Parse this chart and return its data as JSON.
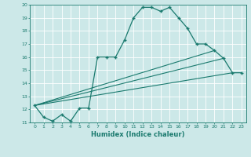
{
  "xlabel": "Humidex (Indice chaleur)",
  "xlim": [
    -0.5,
    23.5
  ],
  "ylim": [
    11,
    20
  ],
  "xticks": [
    0,
    1,
    2,
    3,
    4,
    5,
    6,
    7,
    8,
    9,
    10,
    11,
    12,
    13,
    14,
    15,
    16,
    17,
    18,
    19,
    20,
    21,
    22,
    23
  ],
  "yticks": [
    11,
    12,
    13,
    14,
    15,
    16,
    17,
    18,
    19,
    20
  ],
  "bg_color": "#cce8e8",
  "line_color": "#1a7a6e",
  "grid_color": "#ffffff",
  "series1_x": [
    0,
    1,
    2,
    3,
    4,
    5,
    6,
    7,
    8,
    9,
    10,
    11,
    12,
    13,
    14,
    15,
    16,
    17,
    18,
    19,
    20,
    21,
    22,
    23
  ],
  "series1_y": [
    12.3,
    11.4,
    11.1,
    11.6,
    11.1,
    12.1,
    12.1,
    16.0,
    16.0,
    16.0,
    17.3,
    19.0,
    19.8,
    19.8,
    19.5,
    19.8,
    19.0,
    18.2,
    17.0,
    17.0,
    16.5,
    15.9,
    14.8,
    14.8
  ],
  "series2_x": [
    0,
    22
  ],
  "series2_y": [
    12.3,
    14.8
  ],
  "series3_x": [
    0,
    21
  ],
  "series3_y": [
    12.3,
    15.9
  ],
  "series4_x": [
    0,
    20
  ],
  "series4_y": [
    12.3,
    16.5
  ]
}
